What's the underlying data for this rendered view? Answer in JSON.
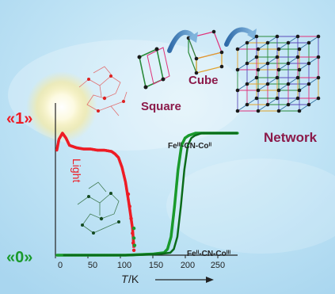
{
  "labels": {
    "state_high": "«1»",
    "state_low": "«0»",
    "light": "Light",
    "square": "Square",
    "cube": "Cube",
    "network": "Network",
    "axis_T": "T",
    "axis_unit": "/K"
  },
  "colors": {
    "red": "#ee1c25",
    "green": "#1a9a2c",
    "dark_green": "#0b6b1a",
    "purple": "#8b1a4a",
    "sky": "#9fd2ee"
  },
  "chart_data": {
    "type": "line",
    "xlabel": "T /K",
    "xlim": [
      0,
      260
    ],
    "x_ticks": [
      "0",
      "50",
      "100",
      "150",
      "200",
      "250"
    ],
    "ylim": [
      0,
      1
    ],
    "y_ticks": [
      "«0»",
      "«1»"
    ],
    "annotations": [
      "Light",
      "Feᴵᴵᴵ-CN-Coᴵᴵ",
      "Feᴵᴵ-CN-Coᴵᴵᴵ"
    ],
    "series": [
      {
        "name": "Feᴵᴵᴵ-CN-Coᴵᴵ",
        "color": "#ee1c25",
        "x": [
          2,
          5,
          10,
          15,
          20,
          30,
          40,
          50,
          60,
          70,
          80,
          85,
          90,
          95,
          100,
          105,
          110,
          112
        ],
        "y": [
          0.86,
          0.95,
          1.0,
          0.96,
          0.9,
          0.88,
          0.87,
          0.87,
          0.86,
          0.86,
          0.85,
          0.83,
          0.8,
          0.72,
          0.6,
          0.42,
          0.22,
          0.06
        ]
      },
      {
        "name": "Feᴵᴵ-CN-Coᴵᴵᴵ",
        "color": "#1a9a2c",
        "x": [
          2,
          50,
          100,
          140,
          155,
          160,
          165,
          170,
          175,
          180,
          185,
          190,
          200,
          230,
          260
        ],
        "y": [
          0.0,
          0.0,
          0.0,
          0.01,
          0.02,
          0.05,
          0.15,
          0.4,
          0.7,
          0.9,
          0.96,
          0.98,
          1.0,
          1.0,
          1.0
        ]
      }
    ]
  }
}
